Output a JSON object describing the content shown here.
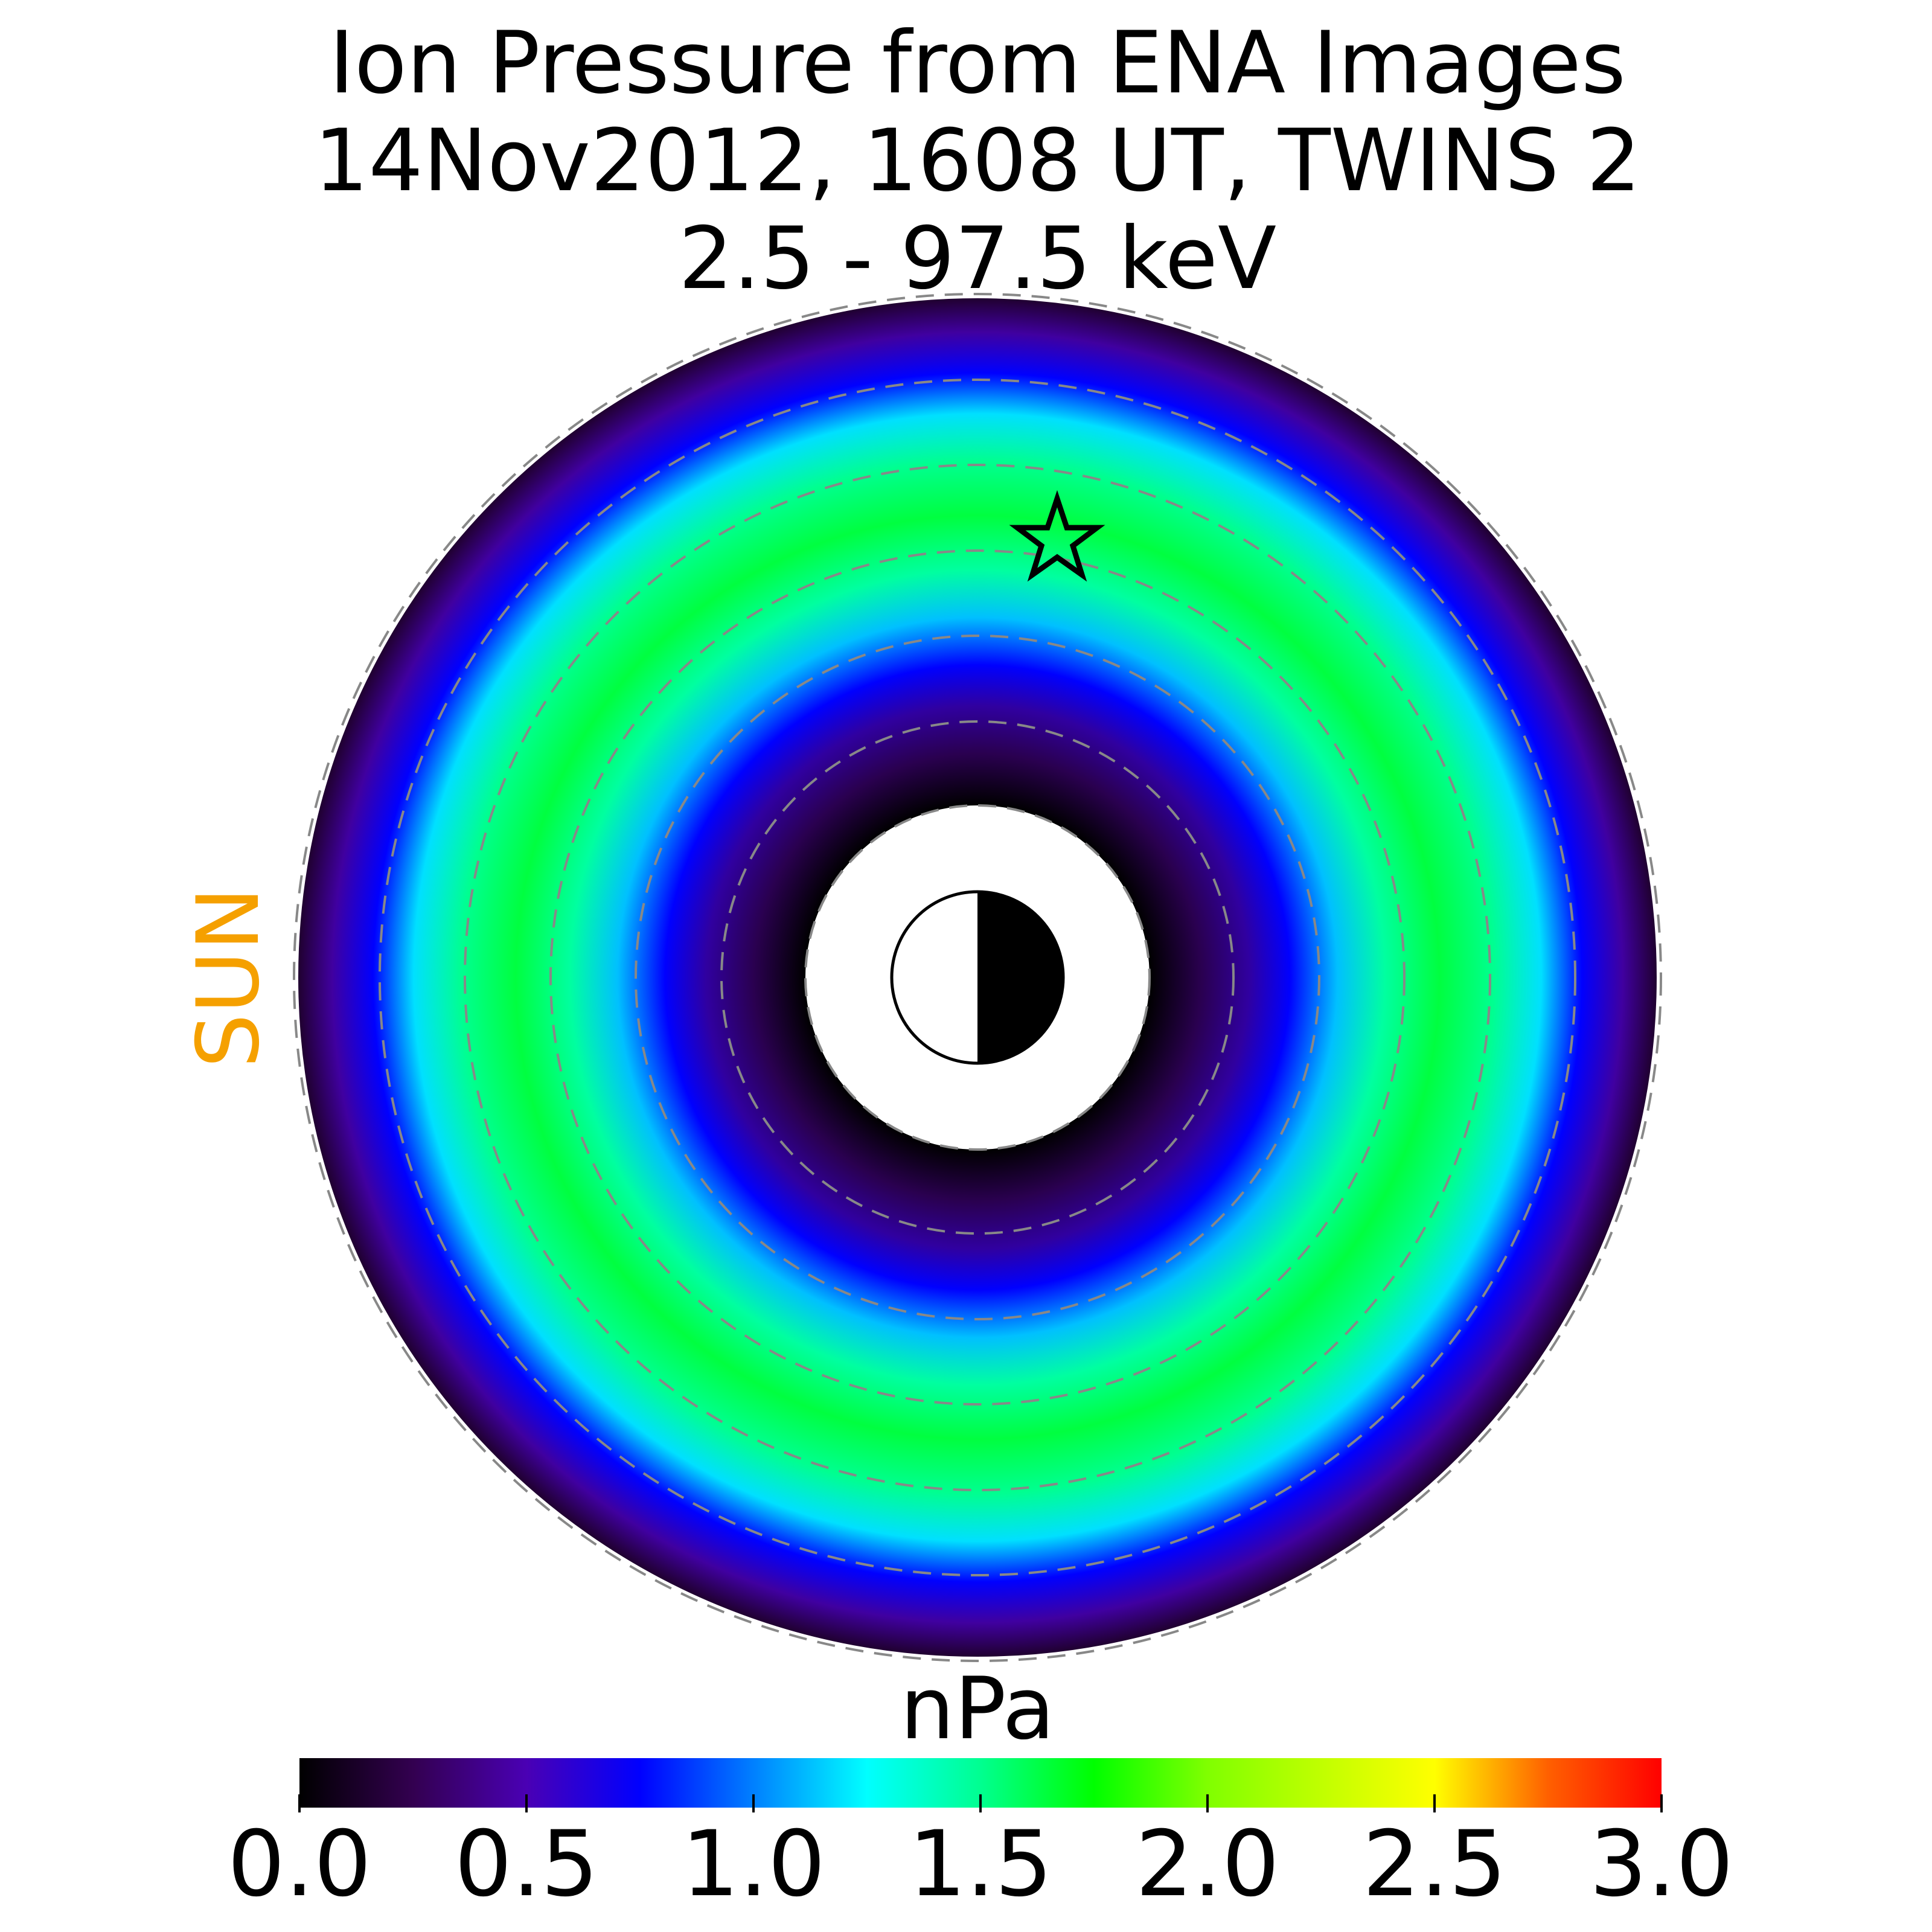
{
  "chart_data": {
    "type": "heatmap",
    "title": [
      "Ion Pressure from  ENA Images",
      "14Nov2012, 1608 UT,  TWINS 2",
      "2.5 - 97.5 keV"
    ],
    "sun_label": "SUN",
    "colorbar": {
      "label": "nPa",
      "lim": [
        0,
        3
      ],
      "ticks": [
        {
          "value": 0,
          "label": "0.0"
        },
        {
          "value": 0.5,
          "label": "0.5"
        },
        {
          "value": 1,
          "label": "1.0"
        },
        {
          "value": 1.5,
          "label": "1.5"
        },
        {
          "value": 2,
          "label": "2.0"
        },
        {
          "value": 2.5,
          "label": "2.5"
        },
        {
          "value": 3,
          "label": "3.0"
        }
      ],
      "colors": [
        "#000000",
        "#330050",
        "#4a00b4",
        "#0000ff",
        "#0080ff",
        "#00ffff",
        "#00ff90",
        "#00ff00",
        "#80ff00",
        "#c0ff00",
        "#ffff00",
        "#ff6000",
        "#ff0000"
      ]
    }
  }
}
